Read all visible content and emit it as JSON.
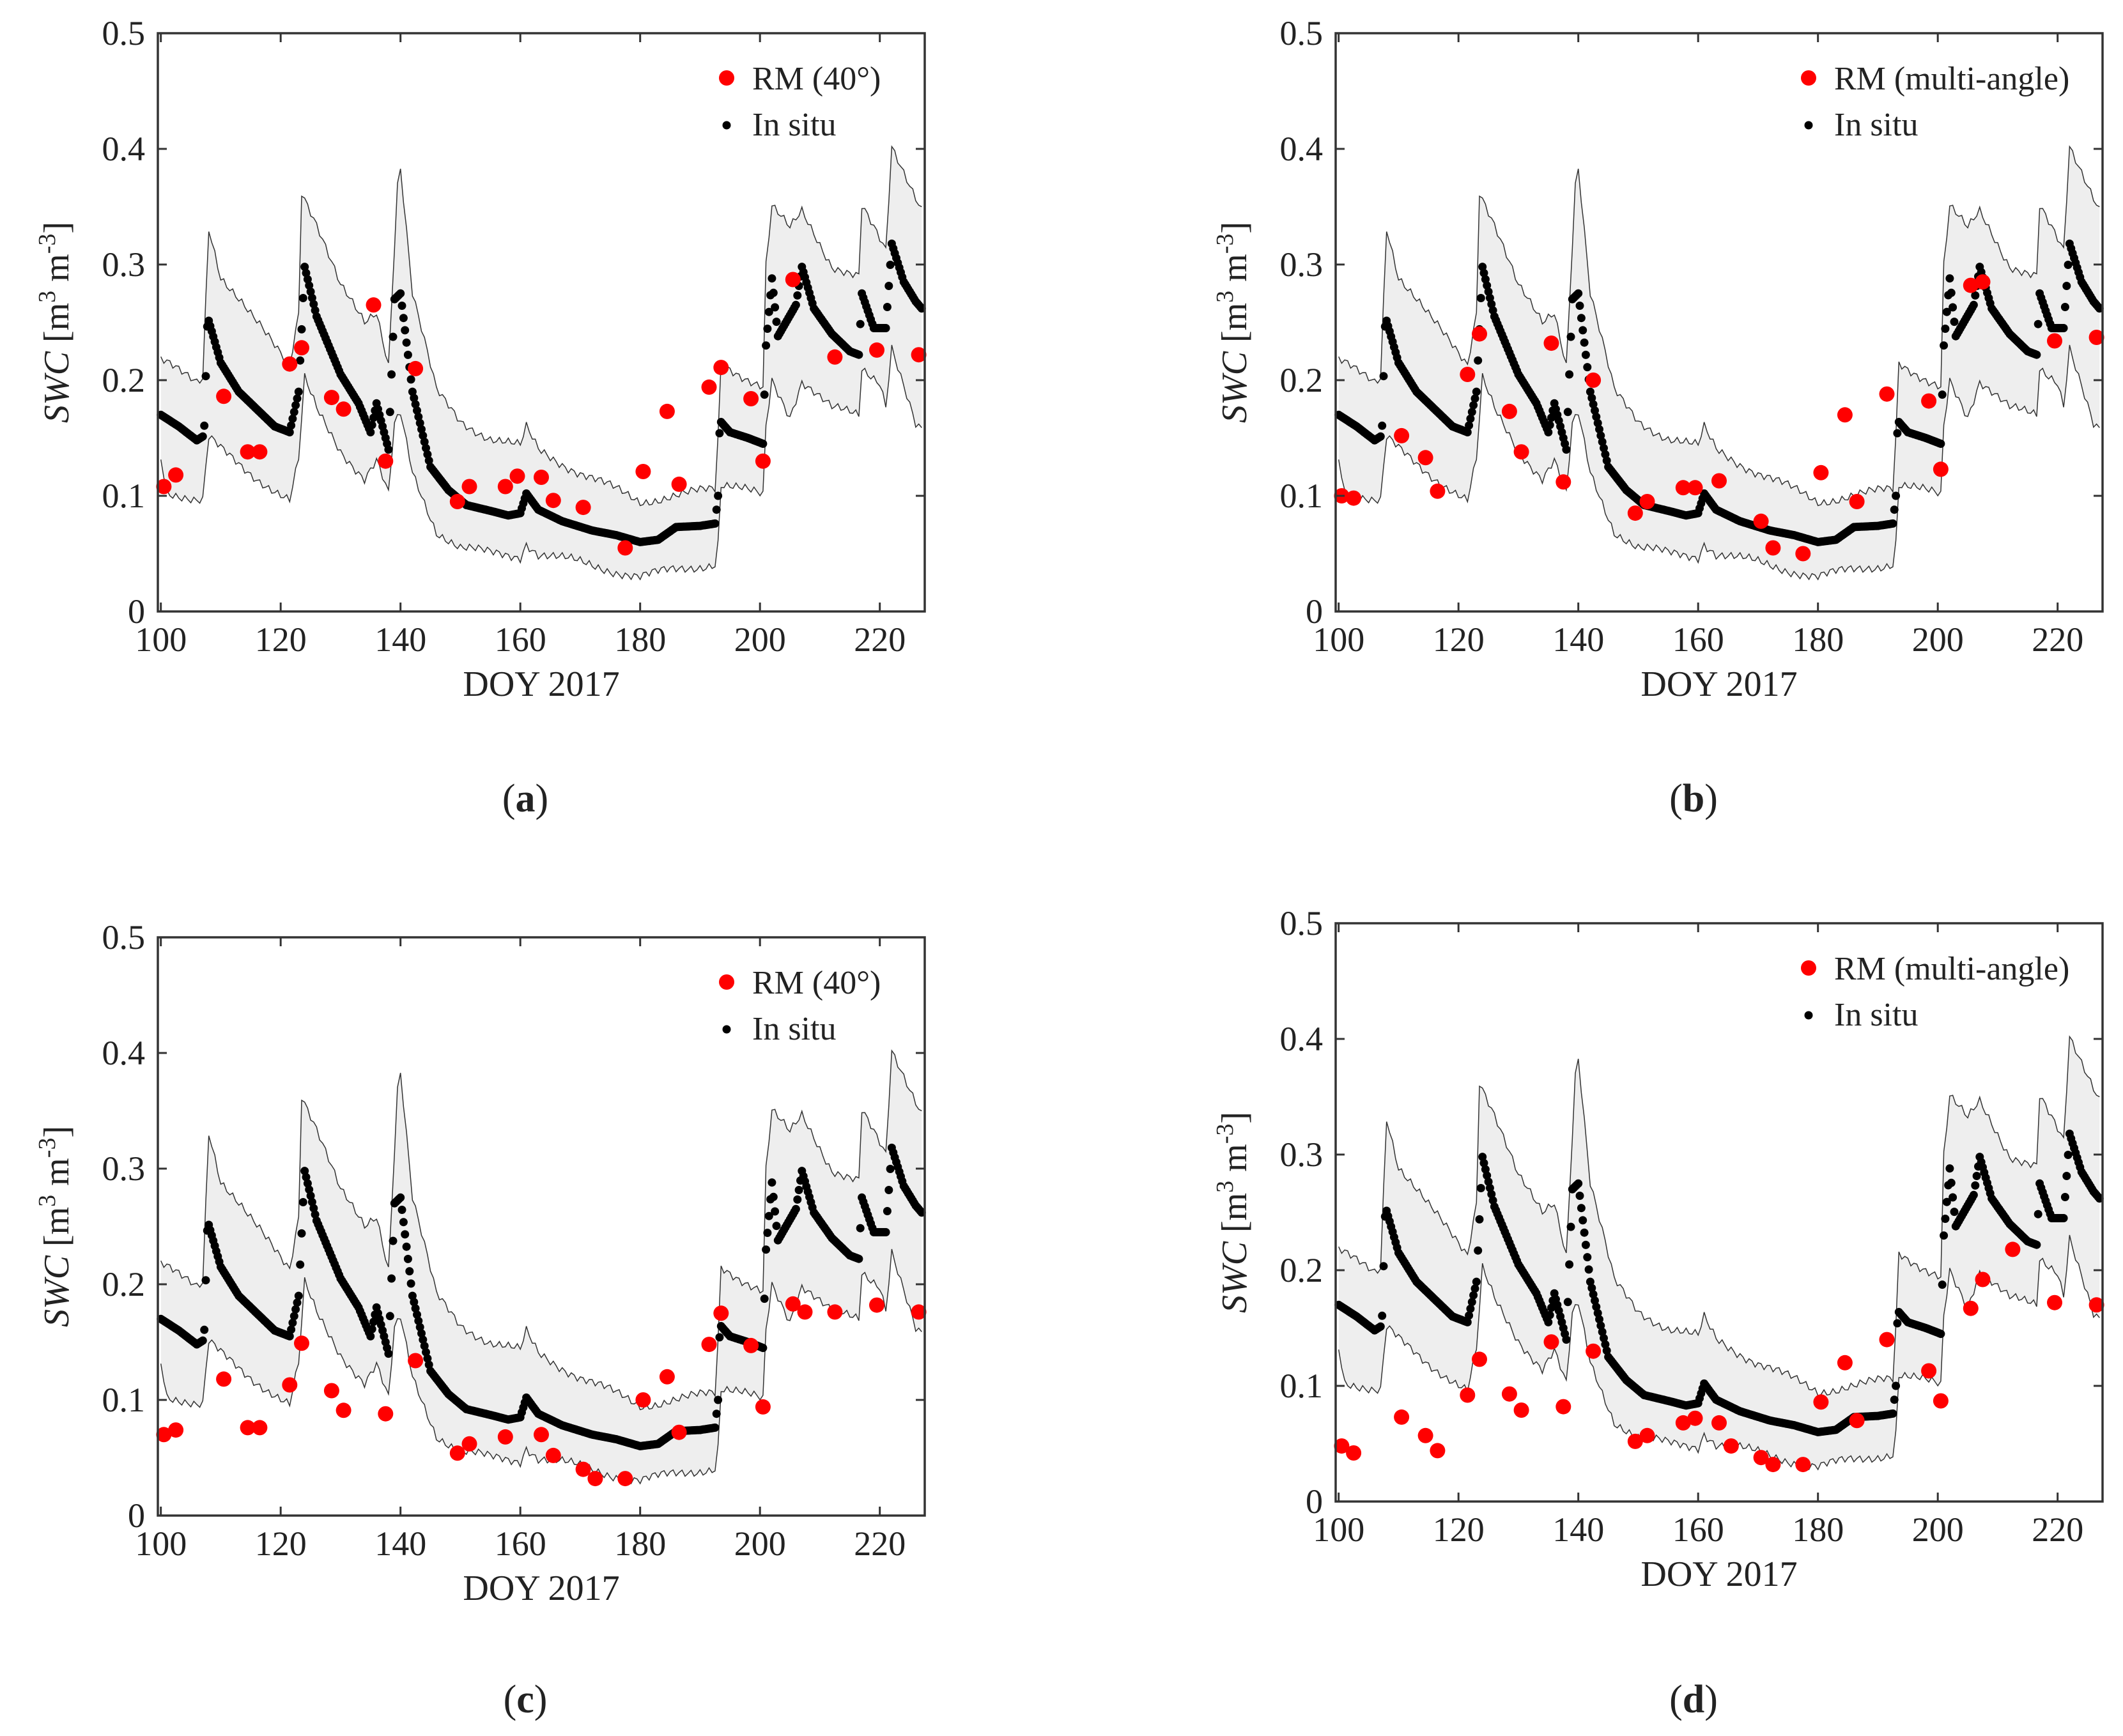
{
  "figure": {
    "captions": [
      "(a)",
      "(b)",
      "(c)",
      "(d)"
    ]
  },
  "chart_data": [
    {
      "id": "a",
      "type": "scatter",
      "caption": "(a)",
      "xlabel": "DOY 2017",
      "ylabel_var": "SWC",
      "ylabel_unit": "[m3 m-3]",
      "xlim": [
        99.5,
        227.5
      ],
      "ylim": [
        0,
        0.5
      ],
      "xticks": [
        100,
        120,
        140,
        160,
        180,
        200,
        220
      ],
      "yticks": [
        0,
        0.1,
        0.2,
        0.3,
        0.4,
        0.5
      ],
      "legend": [
        "RM (40°)",
        "In situ"
      ],
      "legend_position": "top-right",
      "colors": {
        "rm": "#ff0000",
        "insitu": "#000000",
        "band_fill": "#eeeeee",
        "band_edge": "#333333"
      },
      "insitu_knots": [
        [
          100,
          0.17
        ],
        [
          103,
          0.16
        ],
        [
          106,
          0.148
        ],
        [
          107.2,
          0.152
        ],
        [
          107.8,
          0.255
        ],
        [
          110,
          0.215
        ],
        [
          113,
          0.19
        ],
        [
          116,
          0.175
        ],
        [
          119,
          0.16
        ],
        [
          121.5,
          0.155
        ],
        [
          123,
          0.19
        ],
        [
          124,
          0.298
        ],
        [
          126,
          0.255
        ],
        [
          130,
          0.205
        ],
        [
          133,
          0.18
        ],
        [
          135,
          0.155
        ],
        [
          136,
          0.18
        ],
        [
          138,
          0.14
        ],
        [
          139,
          0.27
        ],
        [
          140,
          0.275
        ],
        [
          142,
          0.19
        ],
        [
          145,
          0.125
        ],
        [
          148,
          0.105
        ],
        [
          151,
          0.092
        ],
        [
          155,
          0.087
        ],
        [
          158,
          0.083
        ],
        [
          160,
          0.085
        ],
        [
          161,
          0.102
        ],
        [
          163,
          0.088
        ],
        [
          167,
          0.078
        ],
        [
          172,
          0.07
        ],
        [
          176,
          0.066
        ],
        [
          180,
          0.06
        ],
        [
          183,
          0.062
        ],
        [
          186,
          0.073
        ],
        [
          190,
          0.074
        ],
        [
          192.5,
          0.076
        ],
        [
          193,
          0.1
        ],
        [
          193.3,
          0.165
        ],
        [
          195,
          0.155
        ],
        [
          198,
          0.15
        ],
        [
          200.5,
          0.145
        ],
        [
          201,
          0.23
        ],
        [
          202,
          0.288
        ],
        [
          203,
          0.238
        ],
        [
          206,
          0.265
        ],
        [
          207,
          0.298
        ],
        [
          209,
          0.262
        ],
        [
          212,
          0.24
        ],
        [
          215,
          0.225
        ],
        [
          216.5,
          0.222
        ],
        [
          217,
          0.275
        ],
        [
          218,
          0.26
        ],
        [
          219,
          0.245
        ],
        [
          221,
          0.245
        ],
        [
          222,
          0.318
        ],
        [
          224,
          0.285
        ],
        [
          226,
          0.268
        ],
        [
          227,
          0.262
        ]
      ],
      "band_upper_knots": [
        [
          100,
          0.216
        ],
        [
          106,
          0.2
        ],
        [
          107.2,
          0.205
        ],
        [
          107.8,
          0.338
        ],
        [
          110,
          0.29
        ],
        [
          115,
          0.255
        ],
        [
          121.5,
          0.215
        ],
        [
          123,
          0.26
        ],
        [
          123.5,
          0.365
        ],
        [
          126,
          0.335
        ],
        [
          130,
          0.28
        ],
        [
          134,
          0.25
        ],
        [
          136,
          0.26
        ],
        [
          138,
          0.215
        ],
        [
          139.5,
          0.37
        ],
        [
          140,
          0.385
        ],
        [
          142,
          0.275
        ],
        [
          146,
          0.19
        ],
        [
          150,
          0.165
        ],
        [
          155,
          0.15
        ],
        [
          160,
          0.142
        ],
        [
          161,
          0.158
        ],
        [
          163,
          0.14
        ],
        [
          170,
          0.12
        ],
        [
          176,
          0.105
        ],
        [
          180,
          0.095
        ],
        [
          185,
          0.1
        ],
        [
          192.5,
          0.105
        ],
        [
          193,
          0.15
        ],
        [
          193.3,
          0.215
        ],
        [
          200.5,
          0.195
        ],
        [
          201,
          0.3
        ],
        [
          202,
          0.35
        ],
        [
          205,
          0.33
        ],
        [
          207,
          0.345
        ],
        [
          212,
          0.3
        ],
        [
          216.5,
          0.29
        ],
        [
          217,
          0.35
        ],
        [
          220,
          0.32
        ],
        [
          221,
          0.31
        ],
        [
          222,
          0.4
        ],
        [
          226,
          0.36
        ],
        [
          227,
          0.35
        ]
      ],
      "band_lower_knots": [
        [
          100,
          0.135
        ],
        [
          101,
          0.105
        ],
        [
          106,
          0.095
        ],
        [
          107.2,
          0.095
        ],
        [
          107.8,
          0.15
        ],
        [
          110,
          0.14
        ],
        [
          115,
          0.12
        ],
        [
          121.5,
          0.095
        ],
        [
          123,
          0.13
        ],
        [
          124,
          0.2
        ],
        [
          126,
          0.175
        ],
        [
          130,
          0.14
        ],
        [
          134,
          0.115
        ],
        [
          136,
          0.13
        ],
        [
          138,
          0.1
        ],
        [
          139,
          0.16
        ],
        [
          140,
          0.17
        ],
        [
          142,
          0.12
        ],
        [
          146,
          0.07
        ],
        [
          150,
          0.055
        ],
        [
          155,
          0.05
        ],
        [
          160,
          0.048
        ],
        [
          161,
          0.06
        ],
        [
          163,
          0.05
        ],
        [
          170,
          0.042
        ],
        [
          176,
          0.035
        ],
        [
          180,
          0.03
        ],
        [
          185,
          0.035
        ],
        [
          192.5,
          0.042
        ],
        [
          193,
          0.06
        ],
        [
          193.3,
          0.11
        ],
        [
          200.5,
          0.1
        ],
        [
          201,
          0.16
        ],
        [
          202,
          0.2
        ],
        [
          205,
          0.17
        ],
        [
          207,
          0.2
        ],
        [
          212,
          0.175
        ],
        [
          216.5,
          0.17
        ],
        [
          217,
          0.21
        ],
        [
          220,
          0.2
        ],
        [
          221,
          0.18
        ],
        [
          222,
          0.23
        ],
        [
          226,
          0.16
        ],
        [
          227,
          0.155
        ]
      ],
      "rm_points": [
        [
          100.5,
          0.108
        ],
        [
          102.5,
          0.118
        ],
        [
          110.5,
          0.186
        ],
        [
          114.5,
          0.138
        ],
        [
          116.5,
          0.138
        ],
        [
          121.5,
          0.214
        ],
        [
          123.5,
          0.228
        ],
        [
          128.5,
          0.185
        ],
        [
          130.5,
          0.175
        ],
        [
          135.5,
          0.265
        ],
        [
          137.5,
          0.13
        ],
        [
          142.5,
          0.21
        ],
        [
          149.5,
          0.095
        ],
        [
          151.5,
          0.108
        ],
        [
          157.5,
          0.108
        ],
        [
          159.5,
          0.117
        ],
        [
          163.5,
          0.116
        ],
        [
          165.5,
          0.096
        ],
        [
          170.5,
          0.09
        ],
        [
          177.5,
          0.055
        ],
        [
          180.5,
          0.121
        ],
        [
          184.5,
          0.173
        ],
        [
          186.5,
          0.11
        ],
        [
          191.5,
          0.194
        ],
        [
          193.5,
          0.211
        ],
        [
          198.5,
          0.184
        ],
        [
          200.5,
          0.13
        ],
        [
          205.5,
          0.287
        ],
        [
          212.5,
          0.22
        ],
        [
          219.5,
          0.226
        ],
        [
          226.5,
          0.222
        ]
      ]
    },
    {
      "id": "b",
      "type": "scatter",
      "caption": "(b)",
      "xlabel": "DOY 2017",
      "ylabel_var": "SWC",
      "ylabel_unit": "[m3 m-3]",
      "xlim": [
        99.5,
        227.5
      ],
      "ylim": [
        0,
        0.5
      ],
      "xticks": [
        100,
        120,
        140,
        160,
        180,
        200,
        220
      ],
      "yticks": [
        0,
        0.1,
        0.2,
        0.3,
        0.4,
        0.5
      ],
      "legend": [
        "RM (multi-angle)",
        "In situ"
      ],
      "legend_position": "top-right",
      "colors": {
        "rm": "#ff0000",
        "insitu": "#000000",
        "band_fill": "#eeeeee",
        "band_edge": "#333333"
      },
      "insitu_knots": "same-as-a",
      "rm_points": [
        [
          100.5,
          0.1
        ],
        [
          102.5,
          0.098
        ],
        [
          110.5,
          0.152
        ],
        [
          114.5,
          0.133
        ],
        [
          116.5,
          0.104
        ],
        [
          121.5,
          0.205
        ],
        [
          123.5,
          0.24
        ],
        [
          128.5,
          0.173
        ],
        [
          130.5,
          0.138
        ],
        [
          135.5,
          0.232
        ],
        [
          137.5,
          0.112
        ],
        [
          142.5,
          0.2
        ],
        [
          149.5,
          0.085
        ],
        [
          151.5,
          0.095
        ],
        [
          157.5,
          0.107
        ],
        [
          159.5,
          0.107
        ],
        [
          163.5,
          0.113
        ],
        [
          170.5,
          0.078
        ],
        [
          172.5,
          0.055
        ],
        [
          177.5,
          0.05
        ],
        [
          180.5,
          0.12
        ],
        [
          184.5,
          0.17
        ],
        [
          186.5,
          0.095
        ],
        [
          191.5,
          0.188
        ],
        [
          198.5,
          0.182
        ],
        [
          200.5,
          0.123
        ],
        [
          205.5,
          0.282
        ],
        [
          207.5,
          0.285
        ],
        [
          219.5,
          0.234
        ],
        [
          226.5,
          0.237
        ]
      ]
    },
    {
      "id": "c",
      "type": "scatter",
      "caption": "(c)",
      "xlabel": "DOY 2017",
      "ylabel_var": "SWC",
      "ylabel_unit": "[m3 m-3]",
      "xlim": [
        99.5,
        227.5
      ],
      "ylim": [
        0,
        0.5
      ],
      "xticks": [
        100,
        120,
        140,
        160,
        180,
        200,
        220
      ],
      "yticks": [
        0,
        0.1,
        0.2,
        0.3,
        0.4,
        0.5
      ],
      "legend": [
        "RM (40°)",
        "In situ"
      ],
      "legend_position": "top-right",
      "colors": {
        "rm": "#ff0000",
        "insitu": "#000000",
        "band_fill": "#eeeeee",
        "band_edge": "#333333"
      },
      "insitu_knots": "same-as-a",
      "rm_points": [
        [
          100.5,
          0.07
        ],
        [
          102.5,
          0.074
        ],
        [
          110.5,
          0.118
        ],
        [
          114.5,
          0.076
        ],
        [
          116.5,
          0.076
        ],
        [
          121.5,
          0.113
        ],
        [
          123.5,
          0.149
        ],
        [
          128.5,
          0.108
        ],
        [
          130.5,
          0.091
        ],
        [
          137.5,
          0.088
        ],
        [
          142.5,
          0.134
        ],
        [
          149.5,
          0.054
        ],
        [
          151.5,
          0.062
        ],
        [
          157.5,
          0.068
        ],
        [
          163.5,
          0.07
        ],
        [
          165.5,
          0.052
        ],
        [
          170.5,
          0.04
        ],
        [
          172.5,
          0.032
        ],
        [
          177.5,
          0.032
        ],
        [
          180.5,
          0.1
        ],
        [
          184.5,
          0.12
        ],
        [
          186.5,
          0.072
        ],
        [
          191.5,
          0.148
        ],
        [
          193.5,
          0.175
        ],
        [
          198.5,
          0.147
        ],
        [
          200.5,
          0.094
        ],
        [
          205.5,
          0.183
        ],
        [
          207.5,
          0.176
        ],
        [
          212.5,
          0.176
        ],
        [
          219.5,
          0.182
        ],
        [
          226.5,
          0.176
        ]
      ]
    },
    {
      "id": "d",
      "type": "scatter",
      "caption": "(d)",
      "xlabel": "DOY 2017",
      "ylabel_var": "SWC",
      "ylabel_unit": "[m3 m-3]",
      "xlim": [
        99.5,
        227.5
      ],
      "ylim": [
        0,
        0.5
      ],
      "xticks": [
        100,
        120,
        140,
        160,
        180,
        200,
        220
      ],
      "yticks": [
        0,
        0.1,
        0.2,
        0.3,
        0.4,
        0.5
      ],
      "legend": [
        "RM (multi-angle)",
        "In situ"
      ],
      "legend_position": "top-right",
      "colors": {
        "rm": "#ff0000",
        "insitu": "#000000",
        "band_fill": "#eeeeee",
        "band_edge": "#333333"
      },
      "insitu_knots": "same-as-a",
      "rm_points": [
        [
          100.5,
          0.048
        ],
        [
          102.5,
          0.042
        ],
        [
          110.5,
          0.073
        ],
        [
          114.5,
          0.057
        ],
        [
          116.5,
          0.044
        ],
        [
          121.5,
          0.092
        ],
        [
          123.5,
          0.123
        ],
        [
          128.5,
          0.093
        ],
        [
          130.5,
          0.079
        ],
        [
          135.5,
          0.138
        ],
        [
          137.5,
          0.082
        ],
        [
          142.5,
          0.13
        ],
        [
          149.5,
          0.052
        ],
        [
          151.5,
          0.057
        ],
        [
          157.5,
          0.068
        ],
        [
          159.5,
          0.072
        ],
        [
          163.5,
          0.068
        ],
        [
          165.5,
          0.048
        ],
        [
          170.5,
          0.038
        ],
        [
          172.5,
          0.032
        ],
        [
          177.5,
          0.032
        ],
        [
          180.5,
          0.086
        ],
        [
          184.5,
          0.12
        ],
        [
          186.5,
          0.07
        ],
        [
          191.5,
          0.14
        ],
        [
          198.5,
          0.113
        ],
        [
          200.5,
          0.087
        ],
        [
          205.5,
          0.167
        ],
        [
          207.5,
          0.192
        ],
        [
          212.5,
          0.218
        ],
        [
          219.5,
          0.172
        ],
        [
          226.5,
          0.17
        ]
      ]
    }
  ]
}
